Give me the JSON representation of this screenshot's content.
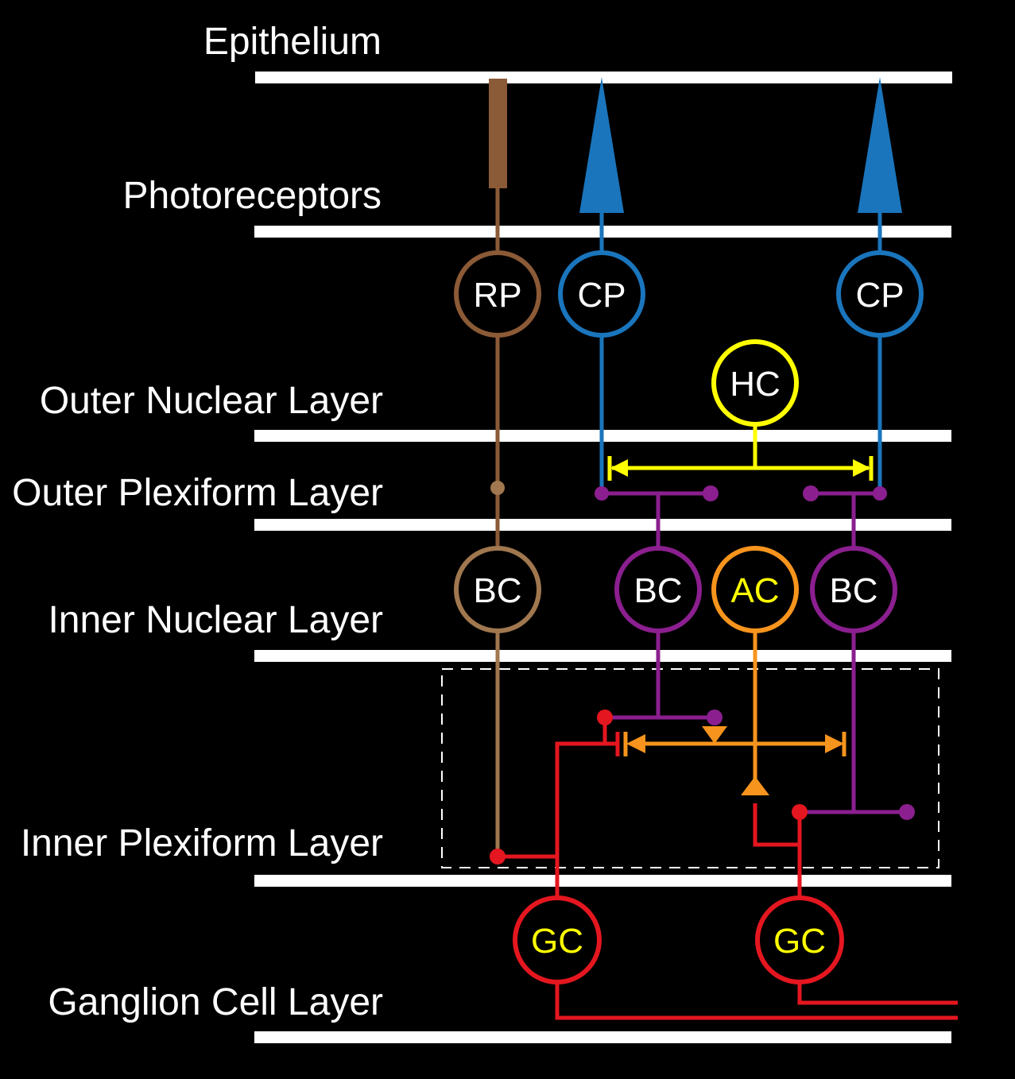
{
  "colors": {
    "background": "#000000",
    "layer_line": "#ffffff",
    "rod_pathway": "#8b5a36",
    "rod_bipolar": "#a0774f",
    "cone_pathway": "#1a75bc",
    "horizontal_cell": "#ffff00",
    "bipolar_cell": "#8b1f8f",
    "amacrine_cell": "#f7941d",
    "ganglion_cell": "#e4161f",
    "cell_label_white": "#ffffff",
    "cell_label_yellow": "#ffff00",
    "ipl_box": "#ffffff"
  },
  "layers": {
    "epithelium": "Epithelium",
    "photoreceptors": "Photoreceptors",
    "outer_nuclear": "Outer Nuclear Layer",
    "outer_plexiform": "Outer Plexiform Layer",
    "inner_nuclear": "Inner Nuclear Layer",
    "inner_plexiform": "Inner Plexiform Layer",
    "ganglion_cell": "Ganglion Cell Layer"
  },
  "cells": {
    "rp": "RP",
    "cp_left": "CP",
    "cp_right": "CP",
    "hc": "HC",
    "bc_rod": "BC",
    "bc_left": "BC",
    "ac": "AC",
    "bc_right": "BC",
    "gc_left": "GC",
    "gc_right": "GC"
  },
  "icons": {
    "rod_outer_segment": "rod-icon",
    "cone_outer_segment": "cone-icon",
    "synapse": "synapse-dot-icon",
    "inhibitory_synapse": "triangle-synapse-icon"
  }
}
